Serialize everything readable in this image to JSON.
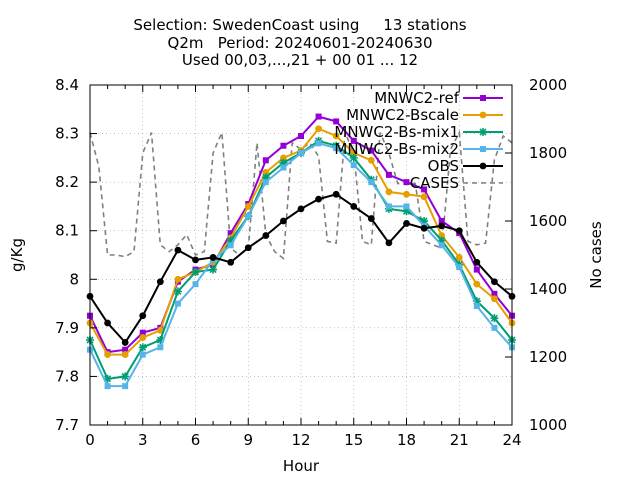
{
  "chart_data": {
    "type": "line",
    "title_lines": [
      "Selection: SwedenCoast using     13 stations",
      "Q2m   Period: 20240601-20240630",
      "Used 00,03,...,21 + 00 01 ... 12"
    ],
    "xlabel": "Hour",
    "ylabel": "g/Kg",
    "y2label": "No cases",
    "xlim": [
      0,
      24
    ],
    "ylim": [
      7.7,
      8.4
    ],
    "y2lim": [
      1000,
      2000
    ],
    "xticks": [
      "0",
      "3",
      "6",
      "9",
      "12",
      "15",
      "18",
      "21",
      "24"
    ],
    "yticks": [
      "7.7",
      "7.8",
      "7.9",
      "8",
      "8.1",
      "8.2",
      "8.3",
      "8.4"
    ],
    "y2ticks": [
      "1000",
      "1200",
      "1400",
      "1600",
      "1800",
      "2000"
    ],
    "grid": true,
    "legend_position": "top-right",
    "x": [
      0,
      1,
      2,
      3,
      4,
      5,
      6,
      7,
      8,
      9,
      10,
      11,
      12,
      13,
      14,
      15,
      16,
      17,
      18,
      19,
      20,
      21,
      22,
      23,
      24
    ],
    "series": [
      {
        "name": "MNWC2-ref",
        "color": "#9400d3",
        "marker": "square",
        "axis": "y1",
        "values": [
          7.925,
          7.85,
          7.855,
          7.89,
          7.9,
          7.995,
          8.02,
          8.03,
          8.095,
          8.155,
          8.245,
          8.275,
          8.295,
          8.335,
          8.325,
          8.285,
          8.265,
          8.215,
          8.2,
          8.185,
          8.12,
          8.095,
          8.02,
          7.97,
          7.925
        ]
      },
      {
        "name": "MNWC2-Bscale",
        "color": "#e69f00",
        "marker": "circle",
        "axis": "y1",
        "values": [
          7.91,
          7.845,
          7.845,
          7.88,
          7.895,
          8.0,
          8.015,
          8.035,
          8.085,
          8.15,
          8.22,
          8.25,
          8.265,
          8.31,
          8.295,
          8.26,
          8.245,
          8.18,
          8.175,
          8.17,
          8.09,
          8.045,
          7.99,
          7.96,
          7.91
        ]
      },
      {
        "name": "MNWC2-Bs-mix1",
        "color": "#009e73",
        "marker": "star",
        "axis": "y1",
        "values": [
          7.875,
          7.795,
          7.8,
          7.86,
          7.875,
          7.975,
          8.015,
          8.02,
          8.08,
          8.13,
          8.21,
          8.24,
          8.26,
          8.285,
          8.275,
          8.25,
          8.205,
          8.145,
          8.14,
          8.12,
          8.08,
          8.03,
          7.955,
          7.92,
          7.875
        ]
      },
      {
        "name": "MNWC2-Bs-mix2",
        "color": "#56b4e9",
        "marker": "square",
        "axis": "y1",
        "values": [
          7.855,
          7.78,
          7.78,
          7.845,
          7.86,
          7.95,
          7.99,
          8.04,
          8.07,
          8.13,
          8.2,
          8.23,
          8.26,
          8.28,
          8.27,
          8.235,
          8.2,
          8.15,
          8.15,
          8.11,
          8.07,
          8.025,
          7.945,
          7.9,
          7.86
        ]
      },
      {
        "name": "OBS",
        "color": "#000000",
        "marker": "circle",
        "axis": "y1",
        "values": [
          7.965,
          7.91,
          7.87,
          7.925,
          7.995,
          8.06,
          8.04,
          8.045,
          8.035,
          8.065,
          8.09,
          8.12,
          8.145,
          8.165,
          8.175,
          8.15,
          8.125,
          8.075,
          8.115,
          8.105,
          8.11,
          8.1,
          8.035,
          7.995,
          7.965
        ]
      },
      {
        "name": "CASES",
        "color": "#808080",
        "marker": "none",
        "dash": true,
        "axis": "y2",
        "x": [
          0,
          0.5,
          1,
          1.5,
          2,
          2.5,
          3,
          3.5,
          4,
          4.5,
          5,
          5.5,
          6,
          6.5,
          7,
          7.5,
          8,
          8.5,
          9,
          9.5,
          10,
          10.5,
          11,
          11.5,
          12,
          12.5,
          13,
          13.5,
          14,
          14.5,
          15,
          15.5,
          16,
          16.5,
          17,
          17.5,
          18,
          18.5,
          19,
          19.5,
          20,
          20.5,
          21,
          21.5,
          22,
          22.5,
          23,
          23.5,
          24
        ],
        "values": [
          1860,
          1760,
          1500,
          1500,
          1495,
          1510,
          1800,
          1860,
          1530,
          1510,
          1530,
          1560,
          1500,
          1510,
          1800,
          1860,
          1520,
          1500,
          1520,
          1830,
          1560,
          1510,
          1490,
          1830,
          1810,
          1830,
          1790,
          1540,
          1535,
          1860,
          1800,
          1540,
          1530,
          1860,
          1800,
          1710,
          1710,
          1710,
          1540,
          1530,
          1520,
          1810,
          1860,
          1540,
          1530,
          1535,
          1780,
          1850,
          1830
        ]
      }
    ]
  }
}
